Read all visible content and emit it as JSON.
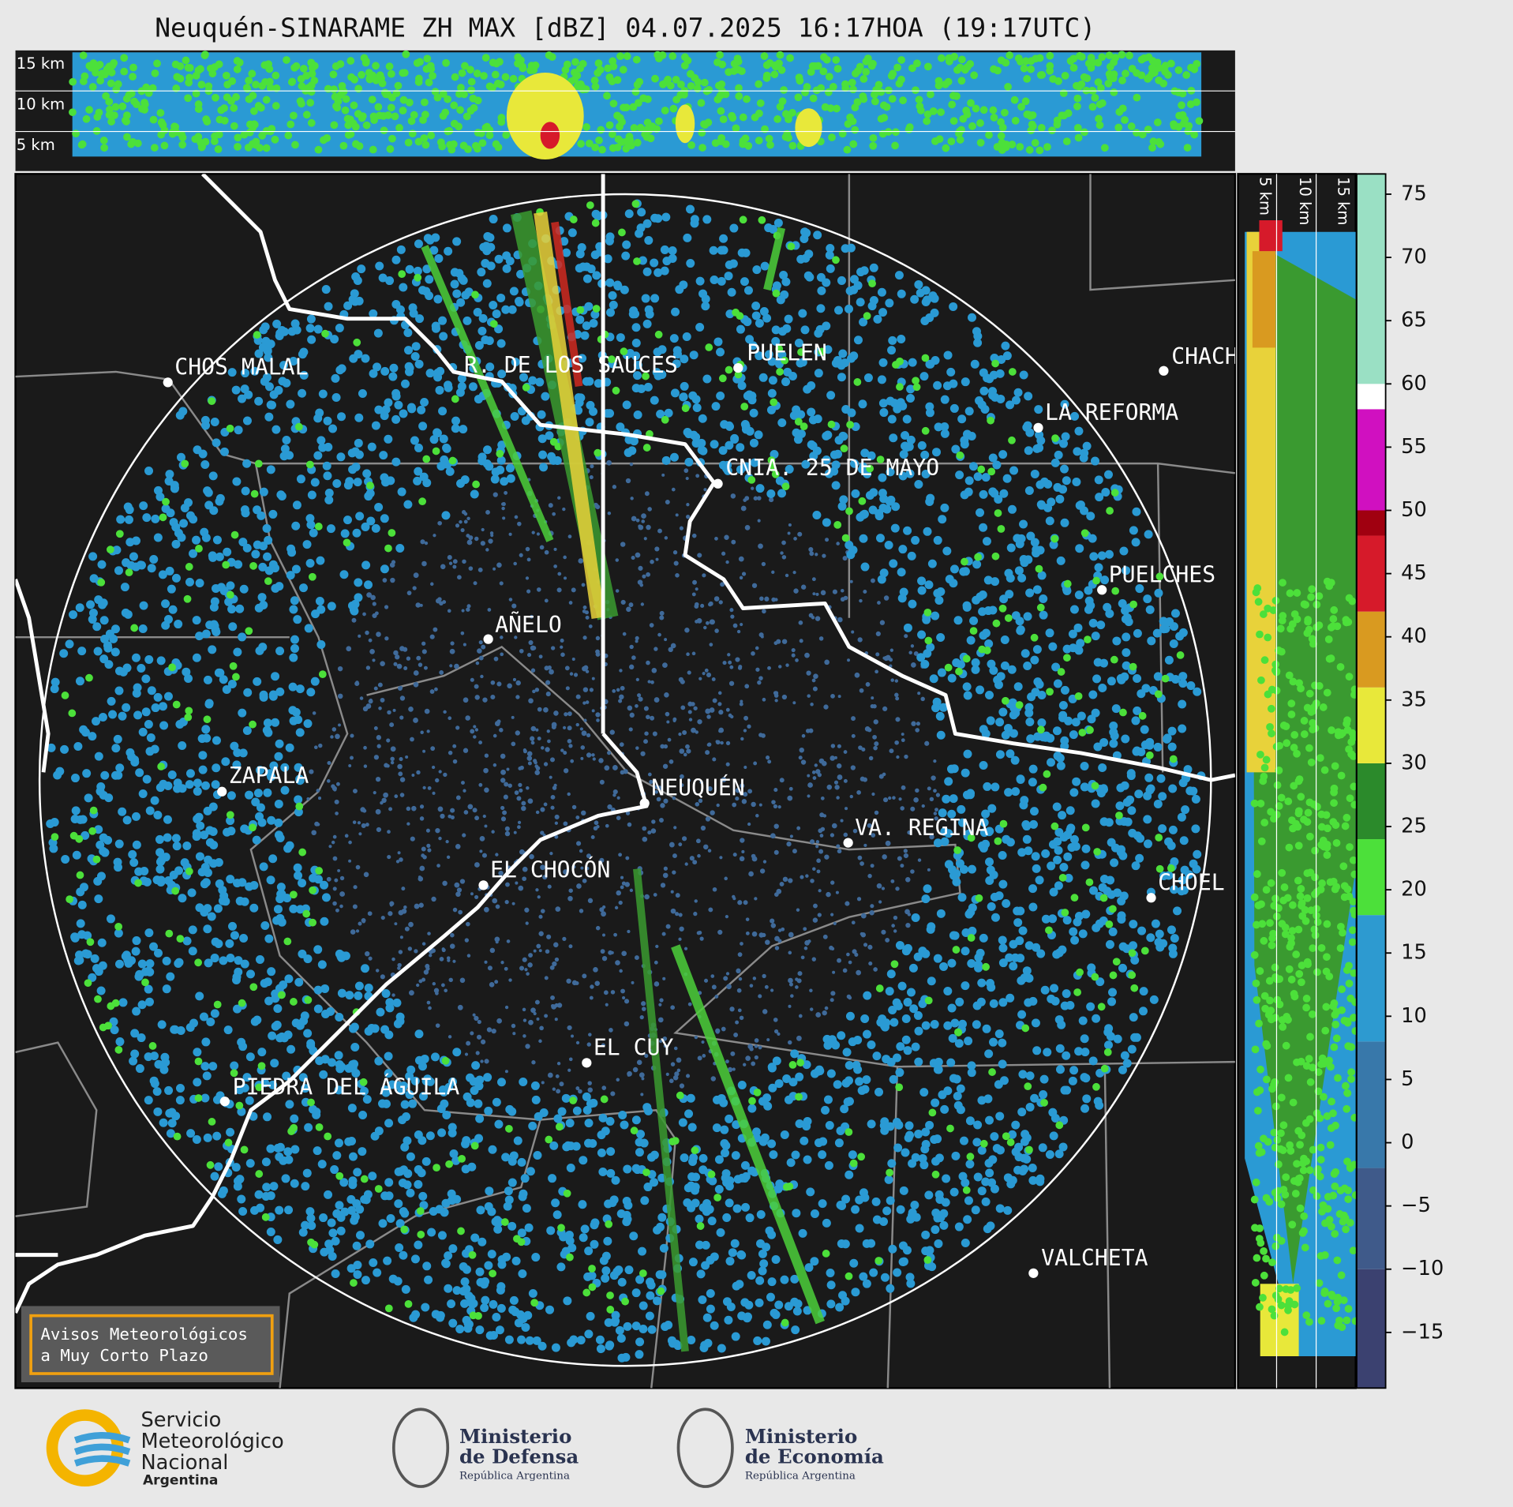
{
  "title": "Neuquén-SINARAME ZH MAX [dBZ] 04.07.2025 16:17HOA (19:17UTC)",
  "top_panel": {
    "height_labels": [
      "15 km",
      "10 km",
      "5 km"
    ]
  },
  "side_panel": {
    "height_labels": [
      "5 km",
      "10 km",
      "15 km"
    ]
  },
  "cities": [
    "CHOS MALAL",
    "R. DE LOS SAUCES",
    "PUELEN",
    "CHACH",
    "LA REFORMA",
    "CNIA. 25 DE MAYO",
    "PUELCHES",
    "AÑELO",
    "ZAPALA",
    "NEUQUÉN",
    "VA. REGINA",
    "EL CHOCÓN",
    "CHOEL",
    "EL CUY",
    "PIEDRA DEL ÁGUILA",
    "VALCHETA"
  ],
  "colorbar": {
    "lim": [
      -19.4,
      76.6
    ],
    "ticks": [
      {
        "value": -15,
        "label": "−15"
      },
      {
        "value": -10,
        "label": "−10"
      },
      {
        "value": -5,
        "label": "−5"
      },
      0,
      5,
      10,
      15,
      20,
      25,
      30,
      35,
      40,
      45,
      50,
      55,
      60,
      65,
      70,
      75
    ],
    "bands": [
      {
        "from": -19.4,
        "to": -10,
        "color": "#3b4170"
      },
      {
        "from": -10,
        "to": -2,
        "color": "#3f5a8a"
      },
      {
        "from": -2,
        "to": 8,
        "color": "#3878aa"
      },
      {
        "from": 8,
        "to": 18,
        "color": "#2d9ad0"
      },
      {
        "from": 18,
        "to": 24,
        "color": "#4ce03a"
      },
      {
        "from": 24,
        "to": 30,
        "color": "#2b8a2b"
      },
      {
        "from": 30,
        "to": 36,
        "color": "#e8e83a"
      },
      {
        "from": 36,
        "to": 42,
        "color": "#d99a20"
      },
      {
        "from": 42,
        "to": 48,
        "color": "#d61a2a"
      },
      {
        "from": 48,
        "to": 50,
        "color": "#a00010"
      },
      {
        "from": 50,
        "to": 58,
        "color": "#d010c0"
      },
      {
        "from": 58,
        "to": 60,
        "color": "#ffffff"
      },
      {
        "from": 60,
        "to": 76.6,
        "color": "#9ae0c4"
      }
    ]
  },
  "notice": [
    "Avisos Meteorológicos",
    "a Muy Corto Plazo"
  ],
  "logos": {
    "smn": [
      "Servicio",
      "Meteorológico",
      "Nacional",
      "Argentina"
    ],
    "defensa": [
      "Ministerio",
      "de Defensa",
      "República Argentina"
    ],
    "economia": [
      "Ministerio",
      "de Economía",
      "República Argentina"
    ]
  }
}
